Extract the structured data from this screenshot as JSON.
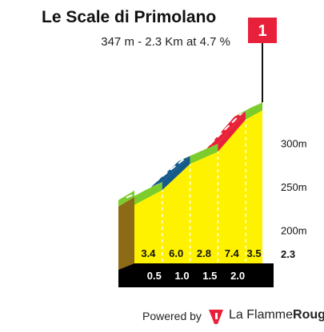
{
  "chart_data": {
    "type": "area",
    "title": "Le Scale di Primolano",
    "subtitle": "347 m - 2.3 Km at 4.7 %",
    "x_km": [
      0,
      0.5,
      1.0,
      1.5,
      2.0,
      2.3
    ],
    "y_ticks": [
      "200m",
      "250m",
      "300m"
    ],
    "y_tick_values": [
      200,
      250,
      300
    ],
    "ylim": [
      153,
      350
    ],
    "segments": [
      {
        "from_km": 0.0,
        "to_km": 0.5,
        "gradient": "3.4",
        "color": "#7ccc2e"
      },
      {
        "from_km": 0.5,
        "to_km": 1.0,
        "gradient": "6.0",
        "color": "#155a8a"
      },
      {
        "from_km": 1.0,
        "to_km": 1.5,
        "gradient": "2.8",
        "color": "#7ccc2e"
      },
      {
        "from_km": 1.5,
        "to_km": 2.0,
        "gradient": "7.4",
        "color": "#e8213a"
      },
      {
        "from_km": 2.0,
        "to_km": 2.3,
        "gradient": "3.5",
        "color": "#7ccc2e"
      }
    ],
    "km_labels": [
      "0.5",
      "1.0",
      "1.5",
      "2.0"
    ],
    "total_label": "2.3",
    "end_marker": "1",
    "profile_fill": "#fff200",
    "base_color": "#000000",
    "side_color": "#8d6a16"
  },
  "footer": {
    "powered_by": "Powered by",
    "brand_a": "La Flamme",
    "brand_b": "Rouge"
  }
}
